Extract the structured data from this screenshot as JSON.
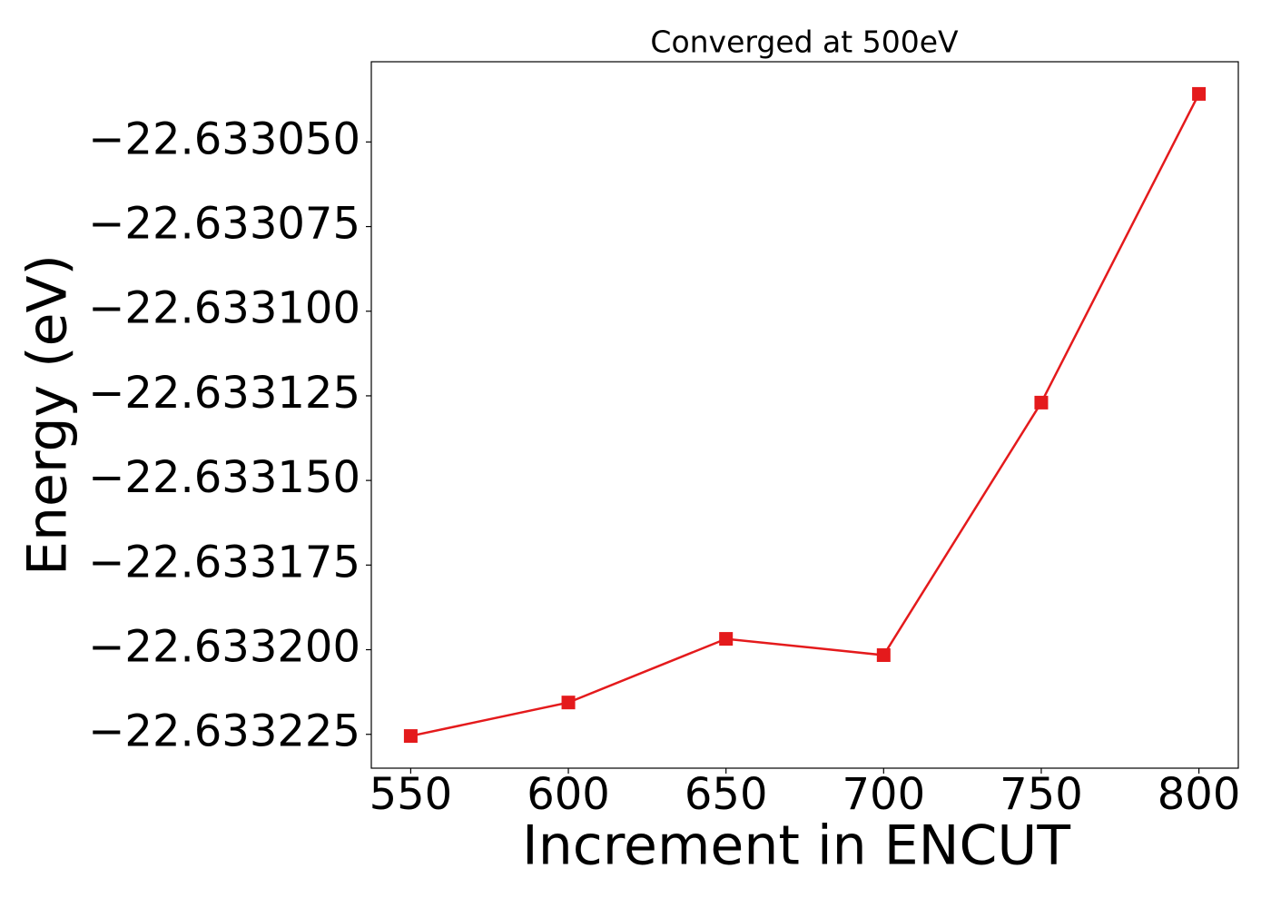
{
  "chart_data": {
    "type": "line",
    "title": "Converged at 500eV",
    "xlabel": "Increment in ENCUT",
    "ylabel": "Energy (eV)",
    "x": [
      550,
      600,
      650,
      700,
      750,
      800
    ],
    "series": [
      {
        "color": "#e41a1c",
        "marker": "square",
        "values": [
          -22.6332255,
          -22.6332156,
          -22.6331968,
          -22.6332016,
          -22.633127,
          -22.6330358
        ]
      }
    ],
    "xlim": [
      537.5,
      812.5
    ],
    "xticks": [
      550,
      600,
      650,
      700,
      750,
      800
    ],
    "ylim": [
      -22.633235,
      -22.6330263
    ],
    "yticks": [
      {
        "value": -22.63305,
        "label": "−22.633050"
      },
      {
        "value": -22.633075,
        "label": "−22.633075"
      },
      {
        "value": -22.6331,
        "label": "−22.633100"
      },
      {
        "value": -22.633125,
        "label": "−22.633125"
      },
      {
        "value": -22.63315,
        "label": "−22.633150"
      },
      {
        "value": -22.633175,
        "label": "−22.633175"
      },
      {
        "value": -22.6332,
        "label": "−22.633200"
      },
      {
        "value": -22.633225,
        "label": "−22.633225"
      }
    ],
    "grid": false
  }
}
